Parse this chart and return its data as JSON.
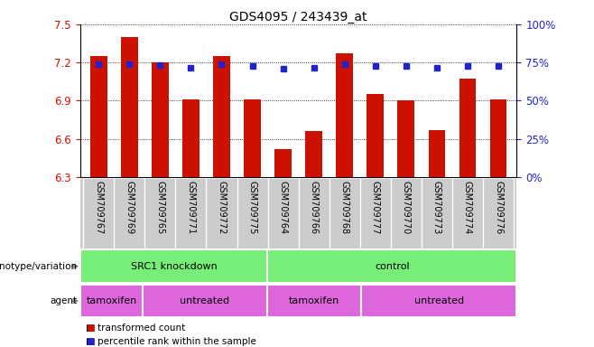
{
  "title": "GDS4095 / 243439_at",
  "samples": [
    "GSM709767",
    "GSM709769",
    "GSM709765",
    "GSM709771",
    "GSM709772",
    "GSM709775",
    "GSM709764",
    "GSM709766",
    "GSM709768",
    "GSM709777",
    "GSM709770",
    "GSM709773",
    "GSM709774",
    "GSM709776"
  ],
  "bar_values": [
    7.25,
    7.4,
    7.2,
    6.91,
    7.25,
    6.91,
    6.52,
    6.66,
    7.27,
    6.95,
    6.9,
    6.67,
    7.07,
    6.91
  ],
  "percentile_values": [
    7.19,
    7.19,
    7.18,
    7.16,
    7.19,
    7.17,
    7.15,
    7.16,
    7.19,
    7.17,
    7.17,
    7.16,
    7.17,
    7.17
  ],
  "ymin": 6.3,
  "ymax": 7.5,
  "yticks": [
    6.3,
    6.6,
    6.9,
    7.2,
    7.5
  ],
  "right_yticks": [
    0,
    25,
    50,
    75,
    100
  ],
  "bar_color": "#cc1100",
  "percentile_color": "#2222cc",
  "left_label_color": "#cc1100",
  "right_label_color": "#2222cc",
  "grid_color": "#000000",
  "genotype_groups": [
    {
      "label": "SRC1 knockdown",
      "start": 0,
      "end": 6
    },
    {
      "label": "control",
      "start": 6,
      "end": 14
    }
  ],
  "genotype_color": "#77ee77",
  "agent_groups": [
    {
      "label": "tamoxifen",
      "start": 0,
      "end": 2
    },
    {
      "label": "untreated",
      "start": 2,
      "end": 6
    },
    {
      "label": "tamoxifen",
      "start": 6,
      "end": 9
    },
    {
      "label": "untreated",
      "start": 9,
      "end": 14
    }
  ],
  "agent_color": "#dd66dd",
  "label_bg_color": "#cccccc",
  "label_border_color": "#aaaaaa"
}
